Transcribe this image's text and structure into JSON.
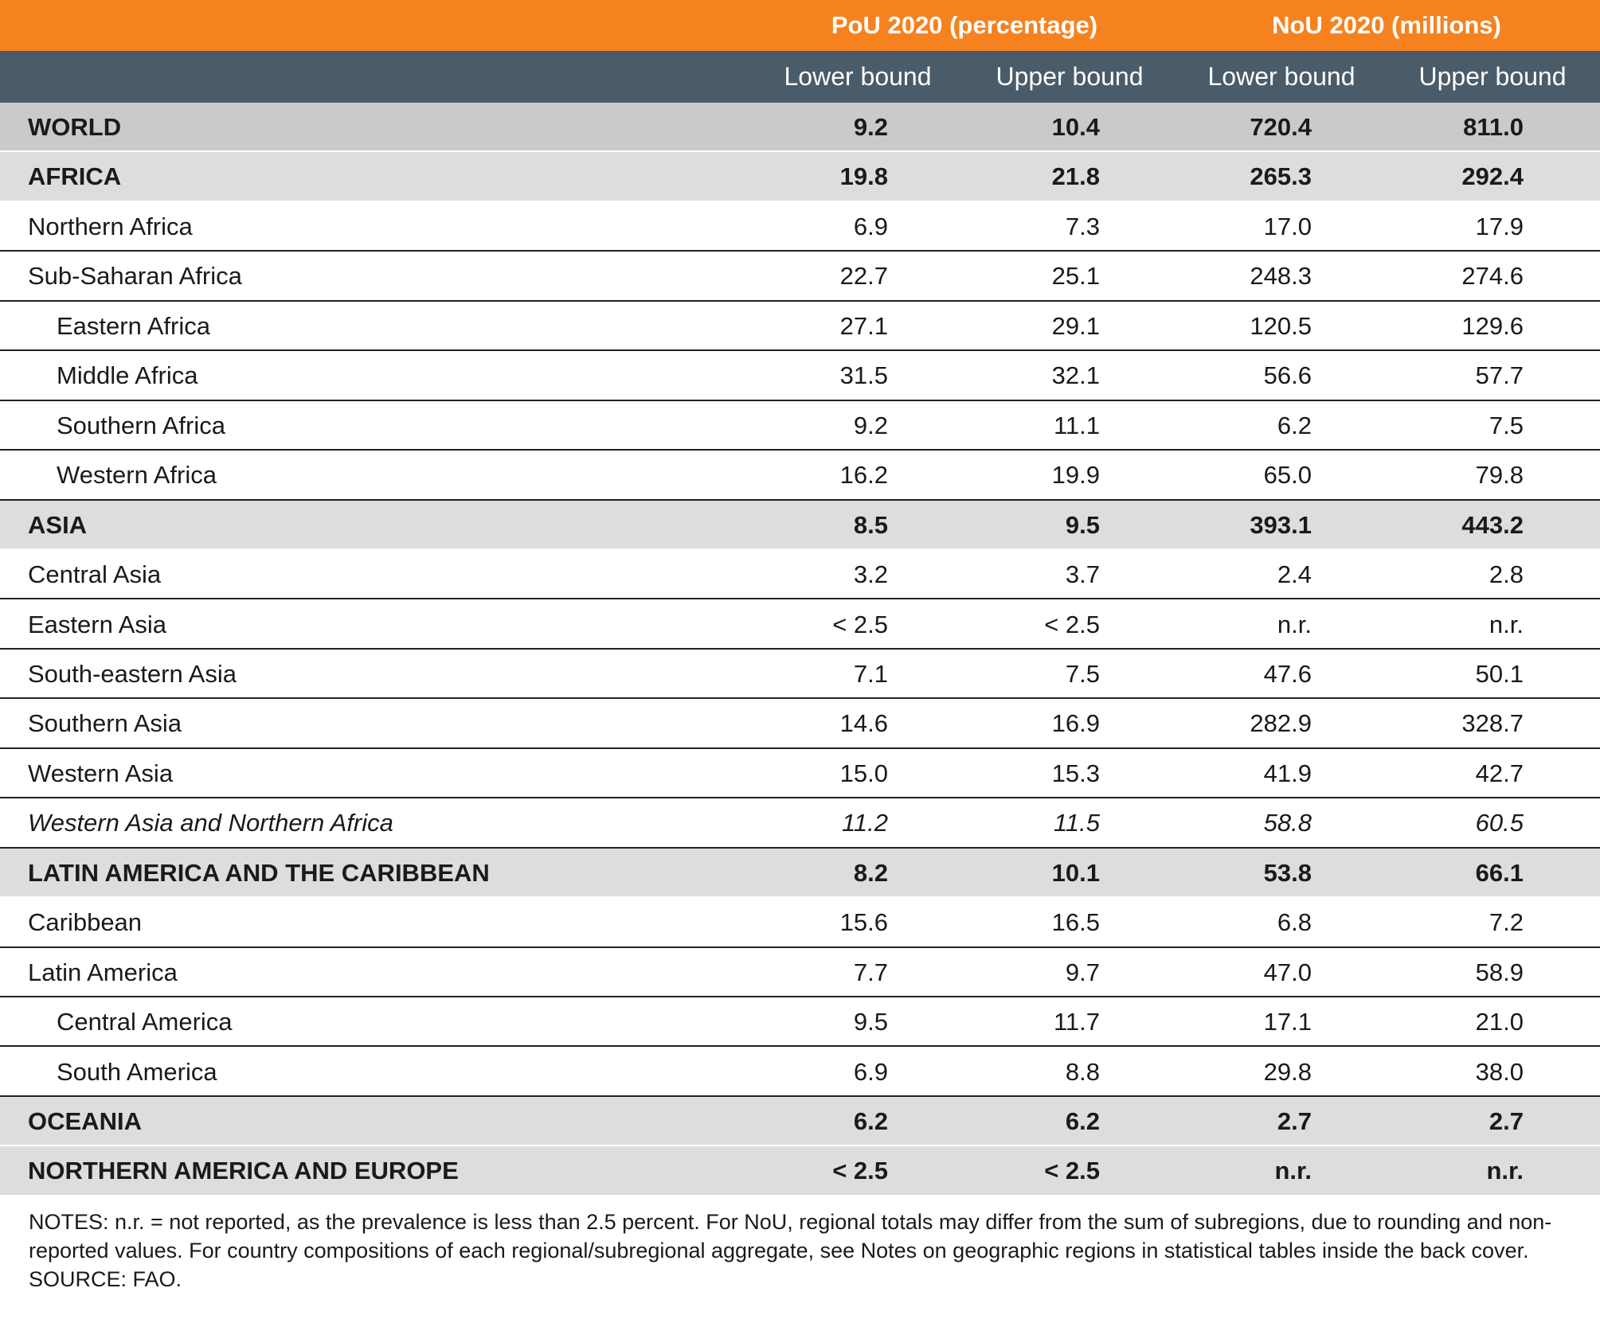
{
  "table": {
    "group_headers": [
      "PoU 2020 (percentage)",
      "NoU 2020 (millions)"
    ],
    "sub_headers": [
      "Lower bound",
      "Upper bound",
      "Lower bound",
      "Upper bound"
    ],
    "rows": [
      {
        "label": "WORLD",
        "kind": "world",
        "values": [
          "9.2",
          "10.4",
          "720.4",
          "811.0"
        ]
      },
      {
        "label": "AFRICA",
        "kind": "region",
        "values": [
          "19.8",
          "21.8",
          "265.3",
          "292.4"
        ]
      },
      {
        "label": "Northern Africa",
        "kind": "subregion",
        "values": [
          "6.9",
          "7.3",
          "17.0",
          "17.9"
        ]
      },
      {
        "label": "Sub-Saharan Africa",
        "kind": "subregion",
        "values": [
          "22.7",
          "25.1",
          "248.3",
          "274.6"
        ]
      },
      {
        "label": "Eastern Africa",
        "kind": "sub-subregion",
        "values": [
          "27.1",
          "29.1",
          "120.5",
          "129.6"
        ]
      },
      {
        "label": "Middle Africa",
        "kind": "sub-subregion",
        "values": [
          "31.5",
          "32.1",
          "56.6",
          "57.7"
        ]
      },
      {
        "label": "Southern Africa",
        "kind": "sub-subregion",
        "values": [
          "9.2",
          "11.1",
          "6.2",
          "7.5"
        ]
      },
      {
        "label": "Western Africa",
        "kind": "sub-subregion",
        "values": [
          "16.2",
          "19.9",
          "65.0",
          "79.8"
        ]
      },
      {
        "label": "ASIA",
        "kind": "region",
        "values": [
          "8.5",
          "9.5",
          "393.1",
          "443.2"
        ]
      },
      {
        "label": "Central Asia",
        "kind": "subregion",
        "values": [
          "3.2",
          "3.7",
          "2.4",
          "2.8"
        ]
      },
      {
        "label": "Eastern Asia",
        "kind": "subregion",
        "values": [
          "< 2.5",
          "< 2.5",
          "n.r.",
          "n.r."
        ]
      },
      {
        "label": "South-eastern Asia",
        "kind": "subregion",
        "values": [
          "7.1",
          "7.5",
          "47.6",
          "50.1"
        ]
      },
      {
        "label": "Southern Asia",
        "kind": "subregion",
        "values": [
          "14.6",
          "16.9",
          "282.9",
          "328.7"
        ]
      },
      {
        "label": "Western Asia",
        "kind": "subregion",
        "values": [
          "15.0",
          "15.3",
          "41.9",
          "42.7"
        ]
      },
      {
        "label": "Western Asia and Northern Africa",
        "kind": "aggregate",
        "values": [
          "11.2",
          "11.5",
          "58.8",
          "60.5"
        ]
      },
      {
        "label": "LATIN AMERICA AND THE CARIBBEAN",
        "kind": "region",
        "values": [
          "8.2",
          "10.1",
          "53.8",
          "66.1"
        ]
      },
      {
        "label": "Caribbean",
        "kind": "subregion",
        "values": [
          "15.6",
          "16.5",
          "6.8",
          "7.2"
        ]
      },
      {
        "label": "Latin America",
        "kind": "subregion",
        "values": [
          "7.7",
          "9.7",
          "47.0",
          "58.9"
        ]
      },
      {
        "label": "Central America",
        "kind": "sub-subregion",
        "values": [
          "9.5",
          "11.7",
          "17.1",
          "21.0"
        ]
      },
      {
        "label": "South America",
        "kind": "sub-subregion",
        "values": [
          "6.9",
          "8.8",
          "29.8",
          "38.0"
        ]
      },
      {
        "label": "OCEANIA",
        "kind": "region",
        "values": [
          "6.2",
          "6.2",
          "2.7",
          "2.7"
        ]
      },
      {
        "label": "NORTHERN AMERICA AND EUROPE",
        "kind": "region",
        "values": [
          "< 2.5",
          "< 2.5",
          "n.r.",
          "n.r."
        ]
      }
    ]
  },
  "notes": {
    "text": "NOTES: n.r. = not reported, as the prevalence is less than 2.5 percent. For NoU, regional totals may differ from the sum of subregions, due to rounding and non-reported values. For country compositions of each regional/subregional aggregate, see Notes on geographic regions in statistical tables inside the back cover.",
    "source": "SOURCE: FAO."
  }
}
